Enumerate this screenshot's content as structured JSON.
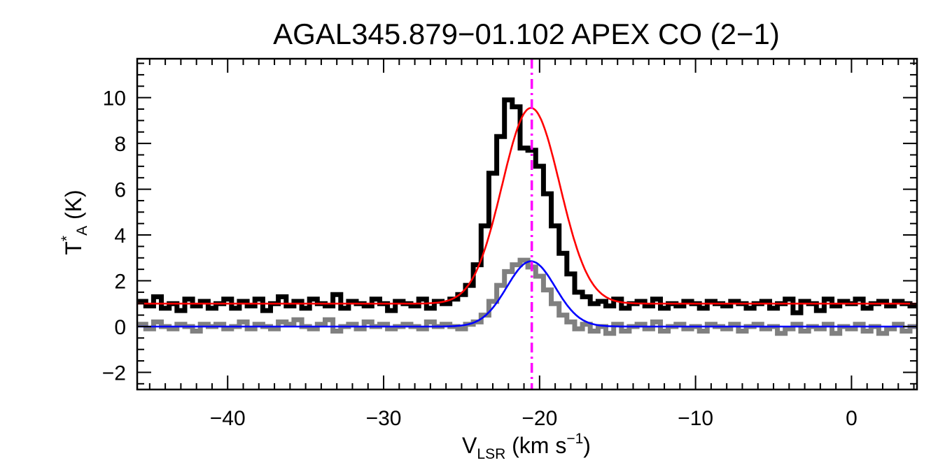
{
  "chart_data": {
    "type": "line",
    "title": "AGAL345.879−01.102  APEX CO (2−1)",
    "xlabel": {
      "main": "V",
      "sub": "LSR",
      "rest": " (km s",
      "sup": "−1",
      "end": ")"
    },
    "ylabel": {
      "main": "T",
      "sup": "*",
      "sub": "A",
      "rest": " (K)"
    },
    "xlim": [
      -45.8,
      4.2
    ],
    "ylim": [
      -2.75,
      11.7
    ],
    "x_ticks": [
      -40,
      -30,
      -20,
      -10,
      0
    ],
    "x_tick_labels": [
      "−40",
      "−30",
      "−20",
      "−10",
      "0"
    ],
    "y_ticks": [
      -2,
      0,
      2,
      4,
      6,
      8,
      10
    ],
    "y_tick_labels": [
      "−2",
      "0",
      "2",
      "4",
      "6",
      "8",
      "10"
    ],
    "grid": false,
    "legend": "none",
    "vline": {
      "x": -20.5,
      "color": "#ff00ff",
      "style": "dash-dot"
    },
    "series": [
      {
        "style": "step",
        "color": "#000000",
        "x": [
          -45.5,
          -45.0,
          -44.5,
          -44.0,
          -43.5,
          -43.0,
          -42.5,
          -42.0,
          -41.5,
          -41.0,
          -40.5,
          -40.0,
          -39.5,
          -39.0,
          -38.5,
          -38.0,
          -37.5,
          -37.0,
          -36.5,
          -36.0,
          -35.5,
          -35.0,
          -34.5,
          -34.0,
          -33.5,
          -33.0,
          -32.5,
          -32.0,
          -31.5,
          -31.0,
          -30.5,
          -30.0,
          -29.5,
          -29.0,
          -28.5,
          -28.0,
          -27.5,
          -27.0,
          -26.5,
          -26.0,
          -25.5,
          -25.0,
          -24.5,
          -24.0,
          -23.5,
          -23.0,
          -22.5,
          -22.0,
          -21.5,
          -21.0,
          -20.5,
          -20.0,
          -19.5,
          -19.0,
          -18.5,
          -18.0,
          -17.5,
          -17.0,
          -16.5,
          -16.0,
          -15.5,
          -15.0,
          -14.5,
          -14.0,
          -13.5,
          -13.0,
          -12.5,
          -12.0,
          -11.5,
          -11.0,
          -10.5,
          -10.0,
          -9.5,
          -9.0,
          -8.5,
          -8.0,
          -7.5,
          -7.0,
          -6.5,
          -6.0,
          -5.5,
          -5.0,
          -4.5,
          -4.0,
          -3.5,
          -3.0,
          -2.5,
          -2.0,
          -1.5,
          -1.0,
          -0.5,
          0.0,
          0.5,
          1.0,
          1.5,
          2.0,
          2.5,
          3.0,
          3.5,
          4.0
        ],
        "y": [
          1.1,
          0.9,
          1.3,
          0.8,
          1.0,
          0.7,
          1.2,
          0.9,
          1.1,
          0.8,
          1.0,
          1.2,
          0.8,
          1.1,
          0.9,
          1.2,
          0.7,
          1.0,
          1.3,
          0.9,
          1.1,
          0.8,
          1.2,
          1.0,
          0.9,
          1.4,
          0.8,
          1.1,
          1.0,
          0.9,
          1.2,
          1.0,
          0.7,
          1.1,
          1.0,
          0.9,
          1.2,
          0.8,
          1.1,
          1.0,
          1.2,
          1.4,
          1.8,
          2.7,
          4.4,
          6.7,
          8.3,
          9.9,
          9.6,
          7.8,
          7.7,
          7.0,
          5.8,
          4.4,
          3.2,
          2.3,
          1.5,
          1.3,
          1.0,
          1.1,
          0.9,
          1.2,
          0.8,
          1.0,
          1.1,
          0.9,
          1.2,
          0.8,
          1.0,
          0.9,
          1.1,
          1.0,
          0.8,
          1.1,
          1.0,
          0.9,
          1.1,
          1.0,
          0.8,
          1.0,
          1.1,
          0.8,
          1.0,
          1.2,
          0.6,
          1.1,
          1.0,
          0.7,
          1.2,
          0.9,
          1.1,
          1.0,
          1.2,
          0.8,
          1.0,
          1.1,
          0.9,
          1.1,
          1.0,
          0.9
        ]
      },
      {
        "style": "step",
        "color": "#808080",
        "x": [
          -45.5,
          -45.0,
          -44.5,
          -44.0,
          -43.5,
          -43.0,
          -42.5,
          -42.0,
          -41.5,
          -41.0,
          -40.5,
          -40.0,
          -39.5,
          -39.0,
          -38.5,
          -38.0,
          -37.5,
          -37.0,
          -36.5,
          -36.0,
          -35.5,
          -35.0,
          -34.5,
          -34.0,
          -33.5,
          -33.0,
          -32.5,
          -32.0,
          -31.5,
          -31.0,
          -30.5,
          -30.0,
          -29.5,
          -29.0,
          -28.5,
          -28.0,
          -27.5,
          -27.0,
          -26.5,
          -26.0,
          -25.5,
          -25.0,
          -24.5,
          -24.0,
          -23.5,
          -23.0,
          -22.5,
          -22.0,
          -21.5,
          -21.0,
          -20.5,
          -20.0,
          -19.5,
          -19.0,
          -18.5,
          -18.0,
          -17.5,
          -17.0,
          -16.5,
          -16.0,
          -15.5,
          -15.0,
          -14.5,
          -14.0,
          -13.5,
          -13.0,
          -12.5,
          -12.0,
          -11.5,
          -11.0,
          -10.5,
          -10.0,
          -9.5,
          -9.0,
          -8.5,
          -8.0,
          -7.5,
          -7.0,
          -6.5,
          -6.0,
          -5.5,
          -5.0,
          -4.5,
          -4.0,
          -3.5,
          -3.0,
          -2.5,
          -2.0,
          -1.5,
          -1.0,
          -0.5,
          0.0,
          0.5,
          1.0,
          1.5,
          2.0,
          2.5,
          3.0,
          3.5,
          4.0
        ],
        "y": [
          0.1,
          -0.1,
          0.2,
          0.0,
          -0.1,
          0.1,
          0.0,
          -0.2,
          0.1,
          0.0,
          0.1,
          -0.1,
          0.0,
          0.2,
          -0.1,
          0.1,
          0.0,
          -0.1,
          0.2,
          0.1,
          0.3,
          0.0,
          -0.1,
          0.1,
          0.3,
          -0.2,
          0.0,
          0.1,
          -0.1,
          0.2,
          0.0,
          0.1,
          -0.1,
          0.0,
          0.1,
          0.0,
          -0.1,
          0.2,
          0.0,
          0.1,
          0.0,
          -0.1,
          0.1,
          0.2,
          0.5,
          1.1,
          1.8,
          2.4,
          2.7,
          2.9,
          2.6,
          2.2,
          1.6,
          1.0,
          0.5,
          0.2,
          -0.1,
          0.1,
          -0.2,
          0.0,
          -0.3,
          0.1,
          -0.2,
          0.0,
          0.1,
          -0.1,
          0.2,
          -0.2,
          0.0,
          0.1,
          -0.1,
          0.0,
          -0.2,
          0.1,
          0.0,
          -0.1,
          0.1,
          -0.2,
          0.0,
          0.1,
          -0.1,
          0.0,
          -0.3,
          -0.1,
          0.1,
          -0.2,
          0.0,
          -0.1,
          0.1,
          -0.3,
          0.0,
          -0.1,
          0.1,
          -0.2,
          0.0,
          -0.3,
          -0.1,
          0.1,
          -0.2,
          0.0
        ]
      },
      {
        "style": "gaussian",
        "color": "#ff0000",
        "baseline": 1.0,
        "amplitude": 8.55,
        "center": -20.55,
        "sigma": 1.85
      },
      {
        "style": "gaussian",
        "color": "#0000ff",
        "baseline": 0.0,
        "amplitude": 2.85,
        "center": -20.55,
        "sigma": 1.55
      }
    ]
  }
}
